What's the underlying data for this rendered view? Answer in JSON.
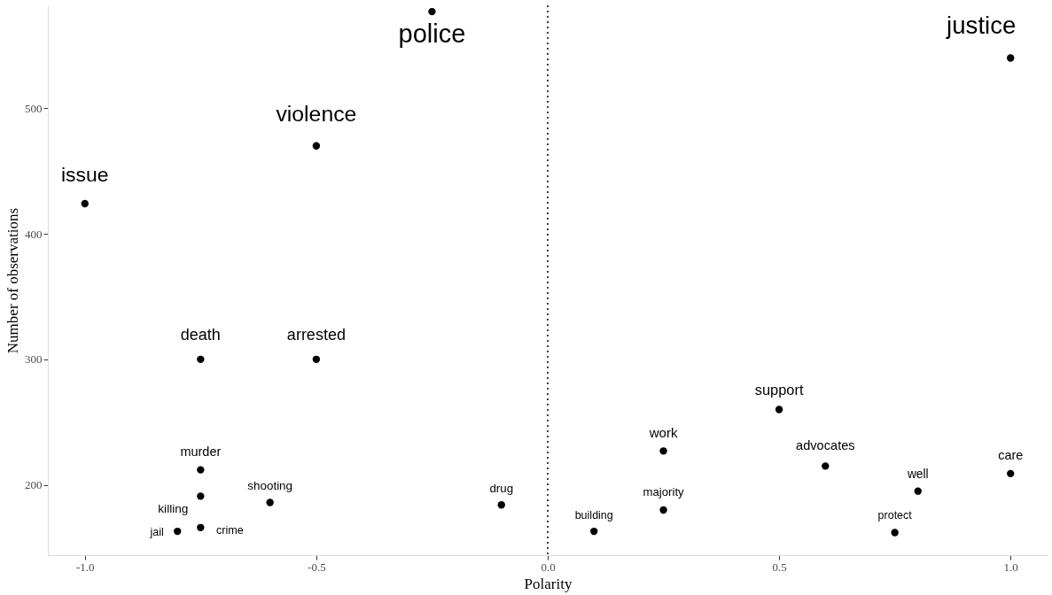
{
  "chart_data": {
    "type": "scatter",
    "xlabel": "Polarity",
    "ylabel": "Number of observations",
    "x": [
      -0.25,
      1.0,
      -0.5,
      -1.0,
      -0.75,
      -0.5,
      0.5,
      0.25,
      0.6,
      1.0,
      0.8,
      -0.75,
      -0.75,
      -0.6,
      -0.1,
      0.25,
      -0.75,
      -0.8,
      0.1,
      0.75
    ],
    "series": [
      {
        "color": "#000000",
        "values": [
          577,
          540,
          470,
          424,
          300,
          300,
          260,
          227,
          215,
          209,
          195,
          212,
          191,
          186,
          184,
          180,
          166,
          163,
          163,
          162
        ]
      }
    ],
    "annotations": [
      {
        "text": "police",
        "x": -0.25,
        "y": 577
      },
      {
        "text": "justice",
        "x": 1.0,
        "y": 540
      },
      {
        "text": "violence",
        "x": -0.5,
        "y": 470
      },
      {
        "text": "issue",
        "x": -1.0,
        "y": 424
      },
      {
        "text": "death",
        "x": -0.75,
        "y": 300
      },
      {
        "text": "arrested",
        "x": -0.5,
        "y": 300
      },
      {
        "text": "support",
        "x": 0.5,
        "y": 260
      },
      {
        "text": "work",
        "x": 0.25,
        "y": 227
      },
      {
        "text": "advocates",
        "x": 0.6,
        "y": 215
      },
      {
        "text": "care",
        "x": 1.0,
        "y": 209
      },
      {
        "text": "well",
        "x": 0.8,
        "y": 195
      },
      {
        "text": "murder",
        "x": -0.75,
        "y": 212
      },
      {
        "text": "killing",
        "x": -0.75,
        "y": 191
      },
      {
        "text": "shooting",
        "x": -0.6,
        "y": 186
      },
      {
        "text": "drug",
        "x": -0.1,
        "y": 184
      },
      {
        "text": "majority",
        "x": 0.25,
        "y": 180
      },
      {
        "text": "crime",
        "x": -0.75,
        "y": 166
      },
      {
        "text": "jail",
        "x": -0.8,
        "y": 163
      },
      {
        "text": "building",
        "x": 0.1,
        "y": 163
      },
      {
        "text": "protect",
        "x": 0.75,
        "y": 162
      }
    ],
    "xlim": [
      -1.08,
      1.08
    ],
    "ylim": [
      144,
      582
    ],
    "xticks": [
      {
        "value": -1.0,
        "label": "-1.0"
      },
      {
        "value": -0.5,
        "label": "-0.5"
      },
      {
        "value": 0,
        "label": "0.0"
      },
      {
        "value": 0.5,
        "label": "0.5"
      },
      {
        "value": 1.0,
        "label": "1.0"
      }
    ],
    "yticks": [
      200,
      300,
      400,
      500
    ],
    "ref_lines": [
      {
        "axis": "x",
        "value": 0,
        "line_style": "dotted",
        "color": "#000000"
      }
    ],
    "marker": "circle"
  }
}
